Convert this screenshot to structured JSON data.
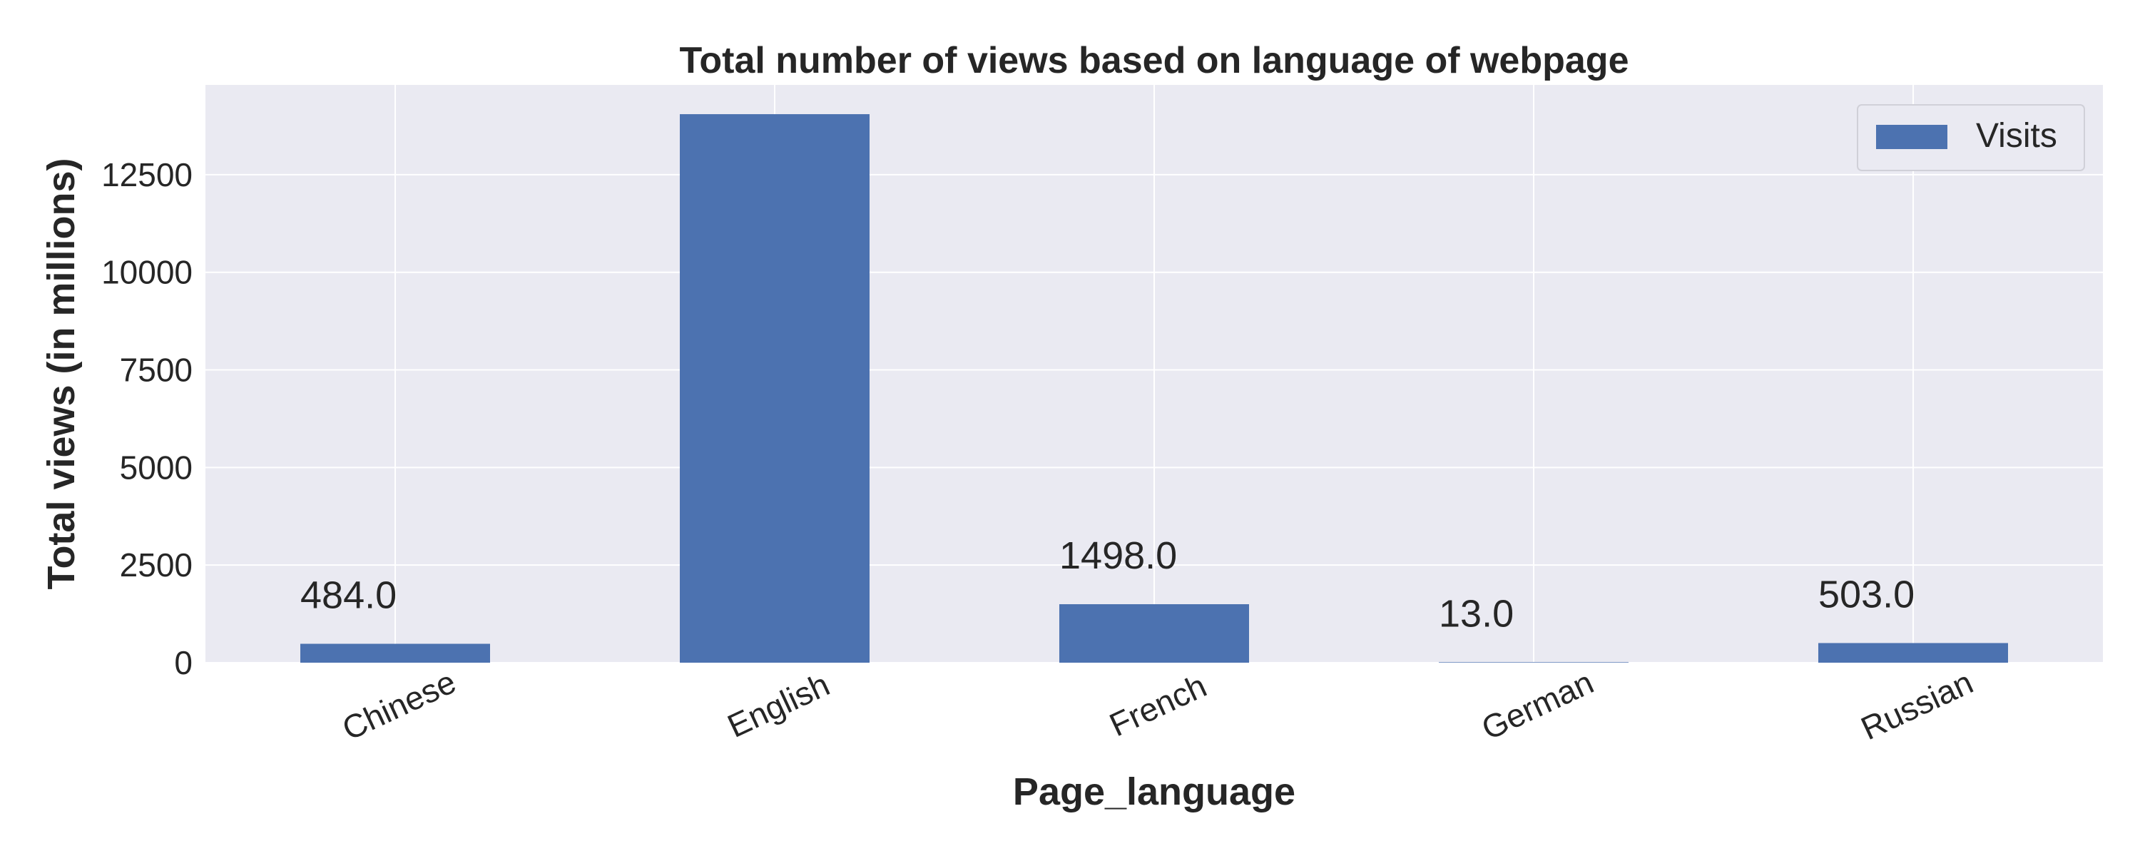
{
  "chart_data": {
    "type": "bar",
    "title": "Total number of views based on language of webpage",
    "xlabel": "Page_language",
    "ylabel": "Total views (in millions)",
    "categories": [
      "Chinese",
      "English",
      "French",
      "German",
      "Russian"
    ],
    "series": [
      {
        "name": "Visits",
        "values": [
          484.0,
          14050.0,
          1498.0,
          13.0,
          503.0
        ],
        "color": "#4c72b0"
      }
    ],
    "data_labels": [
      "484.0",
      "",
      "1498.0",
      "13.0",
      "503.0"
    ],
    "ylim": [
      0,
      14800
    ],
    "yticks": [
      0,
      2500,
      5000,
      7500,
      10000,
      12500
    ],
    "grid": true,
    "legend_position": "top-right",
    "background_color": "#eaeaf2",
    "grid_color": "#ffffff"
  }
}
